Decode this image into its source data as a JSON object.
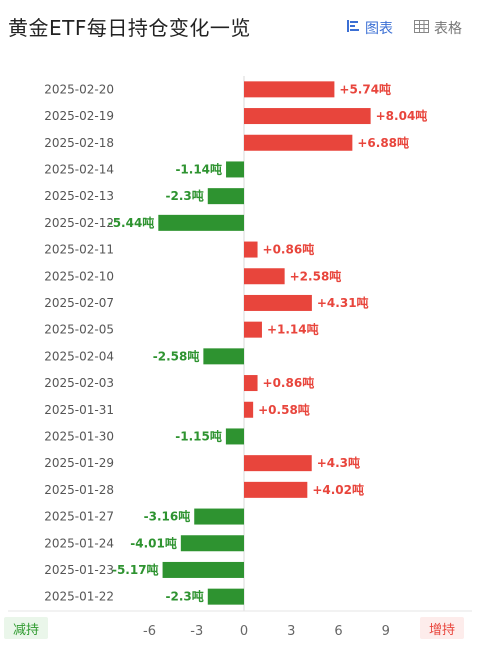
{
  "header": {
    "title": "黄金ETF每日持仓变化一览",
    "view_chart": "图表",
    "view_table": "表格"
  },
  "legend": {
    "decrease": "减持",
    "increase": "增持"
  },
  "colors": {
    "increase": "#e8453c",
    "decrease": "#2e9330",
    "active_tab": "#3b6fd4"
  },
  "chart_data": {
    "type": "bar",
    "orientation": "horizontal",
    "unit": "吨",
    "categories": [
      "2025-02-20",
      "2025-02-19",
      "2025-02-18",
      "2025-02-14",
      "2025-02-13",
      "2025-02-12",
      "2025-02-11",
      "2025-02-10",
      "2025-02-07",
      "2025-02-05",
      "2025-02-04",
      "2025-02-03",
      "2025-01-31",
      "2025-01-30",
      "2025-01-29",
      "2025-01-28",
      "2025-01-27",
      "2025-01-24",
      "2025-01-23",
      "2025-01-22"
    ],
    "values": [
      5.74,
      8.04,
      6.88,
      -1.14,
      -2.3,
      -5.44,
      0.86,
      2.58,
      4.31,
      1.14,
      -2.58,
      0.86,
      0.58,
      -1.15,
      4.3,
      4.02,
      -3.16,
      -4.01,
      -5.17,
      -2.3
    ],
    "labels": [
      "+5.74吨",
      "+8.04吨",
      "+6.88吨",
      "-1.14吨",
      "-2.3吨",
      "-5.44吨",
      "+0.86吨",
      "+2.58吨",
      "+4.31吨",
      "+1.14吨",
      "-2.58吨",
      "+0.86吨",
      "+0.58吨",
      "-1.15吨",
      "+4.3吨",
      "+4.02吨",
      "-3.16吨",
      "-4.01吨",
      "-5.17吨",
      "-2.3吨"
    ],
    "x_ticks": [
      -6,
      -3,
      0,
      3,
      6,
      9
    ],
    "x_tick_labels": [
      "-6",
      "-3",
      "0",
      "3",
      "6",
      "9"
    ],
    "xlim": [
      -6,
      9
    ]
  }
}
